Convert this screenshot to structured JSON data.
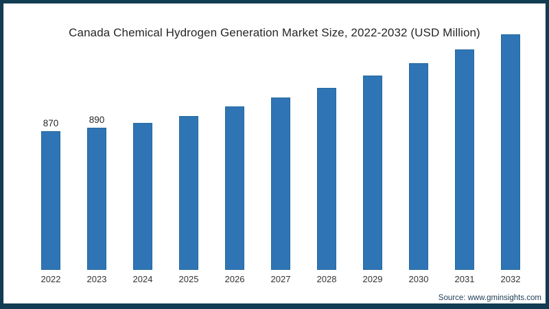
{
  "chart_data": {
    "type": "bar",
    "title": "Canada Chemical Hydrogen Generation Market Size, 2022-2032 (USD Million)",
    "categories": [
      "2022",
      "2023",
      "2024",
      "2025",
      "2026",
      "2027",
      "2028",
      "2029",
      "2030",
      "2031",
      "2032"
    ],
    "values": [
      870,
      890,
      920,
      965,
      1025,
      1080,
      1140,
      1215,
      1295,
      1380,
      1475
    ],
    "data_labels": {
      "2022": "870",
      "2023": "890"
    },
    "xlabel": "",
    "ylabel": "",
    "ylim": [
      0,
      1550
    ],
    "grid": false,
    "legend": false,
    "bar_color": "#2f75b5",
    "bar_edge_color": "#24689e",
    "frame_color": "#113c52",
    "source": "Source: www.gminsights.com"
  }
}
